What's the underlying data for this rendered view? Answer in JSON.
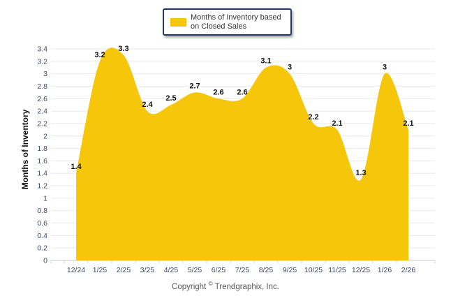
{
  "legend": {
    "label_line1": "Months of Inventory based",
    "label_line2": "on Closed Sales"
  },
  "y_axis": {
    "title": "Months of Inventory"
  },
  "footer": {
    "copyright_prefix": "Copyright ",
    "copyright_symbol": "©",
    "copyright_suffix": " Trendgraphix, Inc."
  },
  "colors": {
    "area_fill": "#F6C60A",
    "legend_border": "#1F3864",
    "gridline": "#EAEAEA",
    "axis_line": "#C9C9C9",
    "axis_text": "#3C475C",
    "data_label": "#111111"
  },
  "chart_data": {
    "type": "area",
    "title": "",
    "series_name": "Months of Inventory based on Closed Sales",
    "categories": [
      "12/24",
      "1/25",
      "2/25",
      "3/25",
      "4/25",
      "5/25",
      "6/25",
      "7/25",
      "8/25",
      "9/25",
      "10/25",
      "11/25",
      "12/25",
      "1/26",
      "2/26"
    ],
    "values": [
      1.4,
      3.2,
      3.3,
      2.4,
      2.5,
      2.7,
      2.6,
      2.6,
      3.1,
      3,
      2.2,
      2.1,
      1.3,
      3,
      2.1
    ],
    "xlabel": "",
    "ylabel": "Months of Inventory",
    "ylim": [
      0,
      3.4
    ],
    "ytick_step": 0.2,
    "grid": true,
    "smooth": true,
    "data_labels": true,
    "legend_position": "top-center",
    "fill_color": "#F6C60A"
  }
}
